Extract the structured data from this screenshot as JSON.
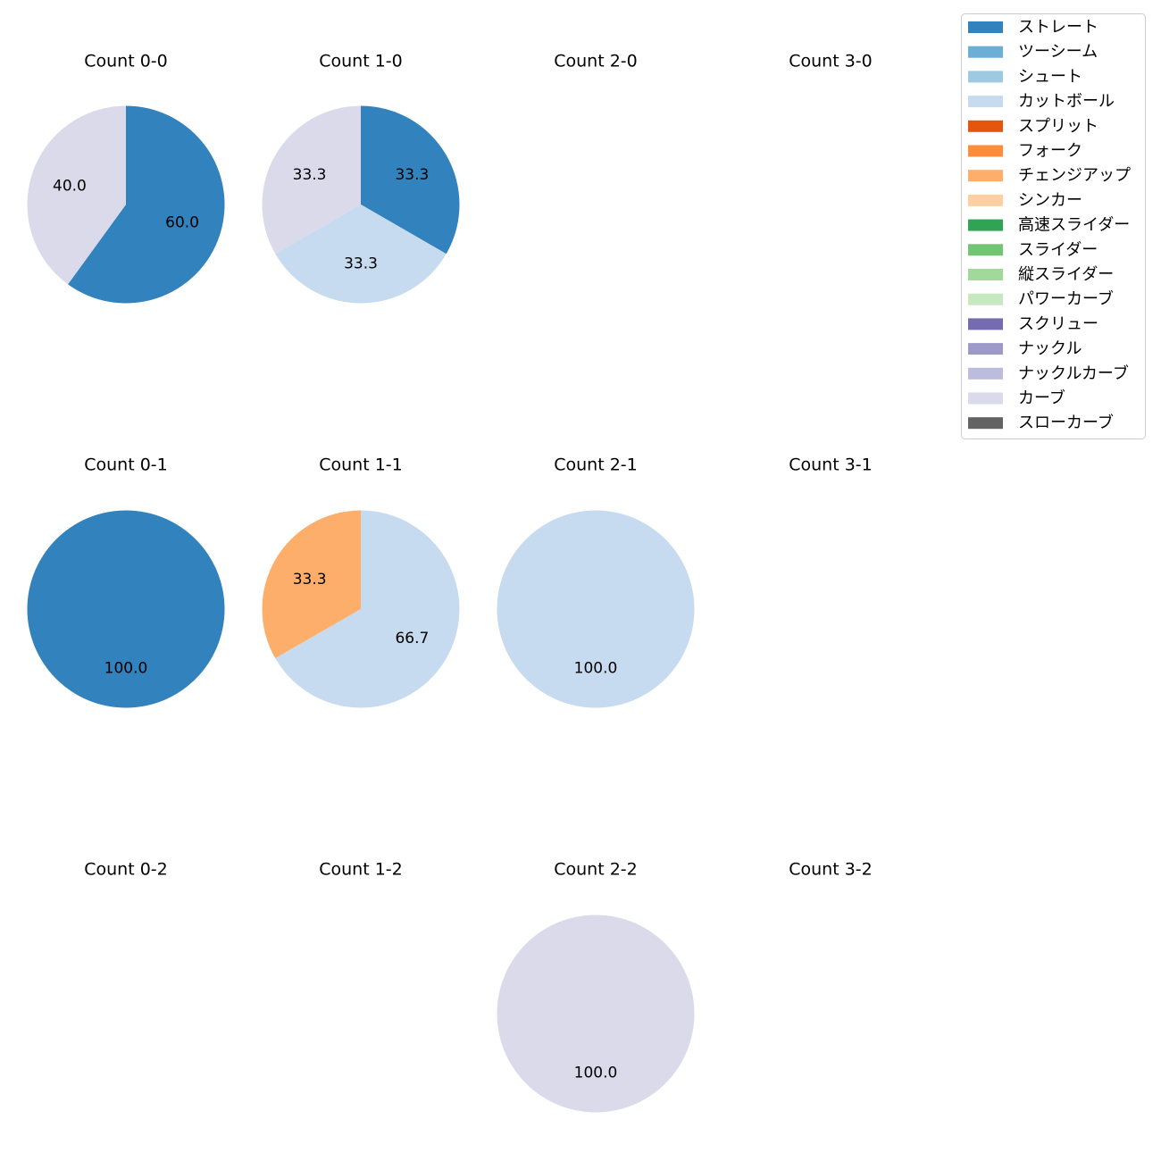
{
  "chart_data": {
    "type": "pie",
    "legend": {
      "placement": "top-right",
      "entries": [
        {
          "label": "ストレート",
          "color": "#3182bd"
        },
        {
          "label": "ツーシーム",
          "color": "#6baed6"
        },
        {
          "label": "シュート",
          "color": "#9ecae1"
        },
        {
          "label": "カットボール",
          "color": "#c6dbef"
        },
        {
          "label": "スプリット",
          "color": "#e6550d"
        },
        {
          "label": "フォーク",
          "color": "#fd8d3c"
        },
        {
          "label": "チェンジアップ",
          "color": "#fdae6b"
        },
        {
          "label": "シンカー",
          "color": "#fdd0a2"
        },
        {
          "label": "高速スライダー",
          "color": "#31a354"
        },
        {
          "label": "スライダー",
          "color": "#74c476"
        },
        {
          "label": "縦スライダー",
          "color": "#a1d99b"
        },
        {
          "label": "パワーカーブ",
          "color": "#c7e9c0"
        },
        {
          "label": "スクリュー",
          "color": "#756bb1"
        },
        {
          "label": "ナックル",
          "color": "#9e9ac8"
        },
        {
          "label": "ナックルカーブ",
          "color": "#bcbddc"
        },
        {
          "label": "カーブ",
          "color": "#dadaeb"
        },
        {
          "label": "スローカーブ",
          "color": "#636363"
        }
      ]
    },
    "subplots": [
      {
        "title": "Count 0-0",
        "row": 0,
        "col": 0,
        "slices": [
          {
            "pitch": "ストレート",
            "value": 60.0,
            "label": "60.0"
          },
          {
            "pitch": "カーブ",
            "value": 40.0,
            "label": "40.0"
          }
        ]
      },
      {
        "title": "Count 1-0",
        "row": 0,
        "col": 1,
        "slices": [
          {
            "pitch": "ストレート",
            "value": 33.3,
            "label": "33.3"
          },
          {
            "pitch": "カットボール",
            "value": 33.3,
            "label": "33.3"
          },
          {
            "pitch": "カーブ",
            "value": 33.3,
            "label": "33.3"
          }
        ]
      },
      {
        "title": "Count 2-0",
        "row": 0,
        "col": 2,
        "slices": []
      },
      {
        "title": "Count 3-0",
        "row": 0,
        "col": 3,
        "slices": []
      },
      {
        "title": "Count 0-1",
        "row": 1,
        "col": 0,
        "slices": [
          {
            "pitch": "ストレート",
            "value": 100.0,
            "label": "100.0"
          }
        ]
      },
      {
        "title": "Count 1-1",
        "row": 1,
        "col": 1,
        "slices": [
          {
            "pitch": "カットボール",
            "value": 66.7,
            "label": "66.7"
          },
          {
            "pitch": "チェンジアップ",
            "value": 33.3,
            "label": "33.3"
          }
        ]
      },
      {
        "title": "Count 2-1",
        "row": 1,
        "col": 2,
        "slices": [
          {
            "pitch": "カットボール",
            "value": 100.0,
            "label": "100.0"
          }
        ]
      },
      {
        "title": "Count 3-1",
        "row": 1,
        "col": 3,
        "slices": []
      },
      {
        "title": "Count 0-2",
        "row": 2,
        "col": 0,
        "slices": []
      },
      {
        "title": "Count 1-2",
        "row": 2,
        "col": 1,
        "slices": []
      },
      {
        "title": "Count 2-2",
        "row": 2,
        "col": 2,
        "slices": [
          {
            "pitch": "カーブ",
            "value": 100.0,
            "label": "100.0"
          }
        ]
      },
      {
        "title": "Count 3-2",
        "row": 2,
        "col": 3,
        "slices": []
      }
    ]
  }
}
